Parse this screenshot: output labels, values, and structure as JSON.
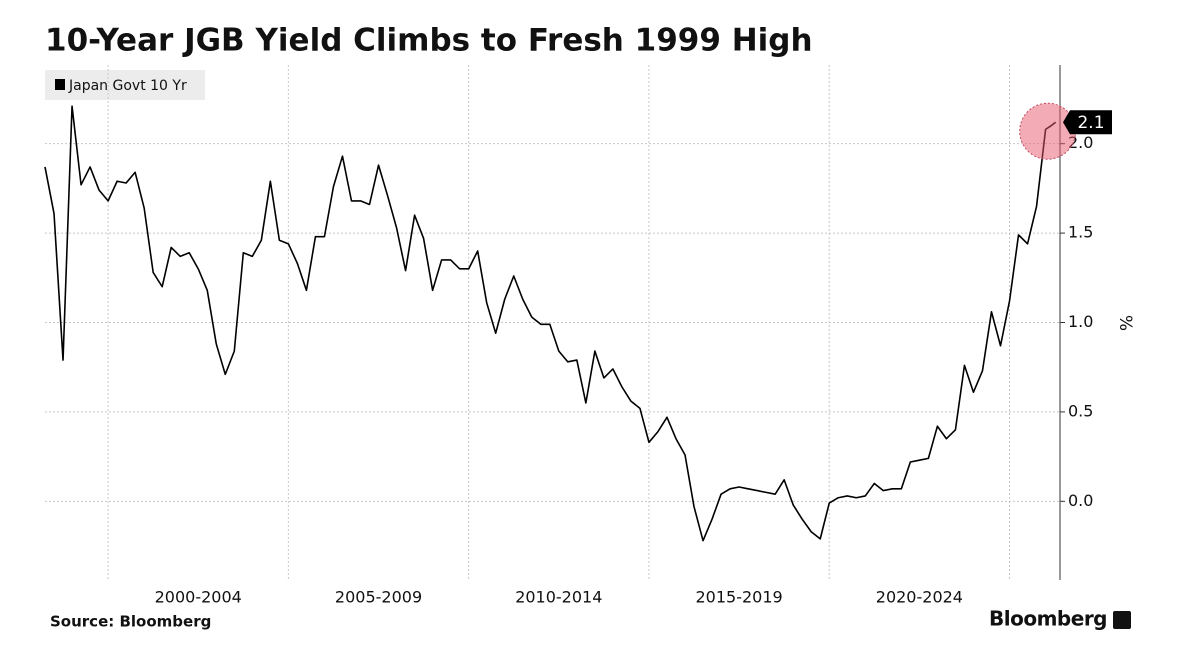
{
  "chart_data": {
    "type": "line",
    "title": "10-Year JGB Yield Climbs to Fresh 1999 High",
    "source": "Source: Bloomberg",
    "brand": "Bloomberg",
    "y_label": "%",
    "x": [
      1998.25,
      1998.5,
      1998.75,
      1999,
      1999.25,
      1999.5,
      1999.75,
      2000,
      2000.25,
      2000.5,
      2000.75,
      2001,
      2001.25,
      2001.5,
      2001.75,
      2002,
      2002.25,
      2002.5,
      2002.75,
      2003,
      2003.25,
      2003.5,
      2003.75,
      2004,
      2004.25,
      2004.5,
      2004.75,
      2005,
      2005.25,
      2005.5,
      2005.75,
      2006,
      2006.25,
      2006.5,
      2006.75,
      2007,
      2007.25,
      2007.5,
      2007.75,
      2008,
      2008.25,
      2008.5,
      2008.75,
      2009,
      2009.25,
      2009.5,
      2009.75,
      2010,
      2010.25,
      2010.5,
      2010.75,
      2011,
      2011.25,
      2011.5,
      2011.75,
      2012,
      2012.25,
      2012.5,
      2012.75,
      2013,
      2013.25,
      2013.5,
      2013.75,
      2014,
      2014.25,
      2014.5,
      2014.75,
      2015,
      2015.25,
      2015.5,
      2015.75,
      2016,
      2016.25,
      2016.5,
      2016.75,
      2017,
      2017.25,
      2017.5,
      2017.75,
      2018,
      2018.25,
      2018.5,
      2018.75,
      2019,
      2019.25,
      2019.5,
      2019.75,
      2020,
      2020.25,
      2020.5,
      2020.75,
      2021,
      2021.25,
      2021.5,
      2021.75,
      2022,
      2022.25,
      2022.5,
      2022.75,
      2023,
      2023.25,
      2023.5,
      2023.75,
      2024,
      2024.25,
      2024.5,
      2024.75,
      2025,
      2025.25,
      2025.5,
      2025.75,
      2026,
      2026.15,
      2026.28
    ],
    "series": [
      {
        "name": "Japan Govt 10 Yr",
        "color": "#000000",
        "values": [
          1.87,
          1.61,
          0.79,
          2.21,
          1.77,
          1.87,
          1.74,
          1.68,
          1.79,
          1.78,
          1.84,
          1.64,
          1.28,
          1.2,
          1.42,
          1.37,
          1.39,
          1.3,
          1.18,
          0.88,
          0.71,
          0.84,
          1.39,
          1.37,
          1.46,
          1.79,
          1.46,
          1.44,
          1.33,
          1.18,
          1.48,
          1.48,
          1.76,
          1.93,
          1.68,
          1.68,
          1.66,
          1.88,
          1.71,
          1.53,
          1.29,
          1.6,
          1.47,
          1.18,
          1.35,
          1.35,
          1.3,
          1.3,
          1.4,
          1.11,
          0.94,
          1.13,
          1.26,
          1.13,
          1.03,
          0.99,
          0.99,
          0.84,
          0.78,
          0.79,
          0.55,
          0.84,
          0.69,
          0.74,
          0.64,
          0.56,
          0.52,
          0.33,
          0.39,
          0.47,
          0.35,
          0.26,
          -0.03,
          -0.22,
          -0.1,
          0.04,
          0.07,
          0.08,
          0.07,
          0.06,
          0.05,
          0.04,
          0.12,
          -0.02,
          -0.1,
          -0.17,
          -0.21,
          -0.01,
          0.02,
          0.03,
          0.02,
          0.03,
          0.1,
          0.06,
          0.07,
          0.07,
          0.22,
          0.23,
          0.24,
          0.42,
          0.35,
          0.4,
          0.76,
          0.61,
          0.73,
          1.06,
          0.87,
          1.12,
          1.49,
          1.44,
          1.65,
          2.08,
          2.1,
          2.12
        ],
        "value_labels": {
          "113": "2.1"
        }
      }
    ],
    "xlim": [
      1998.25,
      2026.4
    ],
    "xticks": [
      2000,
      2005,
      2010,
      2015,
      2020,
      2025
    ],
    "x_period_labels": [
      "2000-2004",
      "2005-2009",
      "2010-2014",
      "2015-2019",
      "2020-2024"
    ],
    "ylim": [
      -0.44,
      2.44
    ],
    "yticks": [
      {
        "value": 0,
        "label": "0.0"
      },
      0.5,
      {
        "value": 1,
        "label": "1.0"
      },
      1.5,
      {
        "value": 2,
        "label": "2.0"
      }
    ],
    "grid": true,
    "y_axis_side": "right",
    "legend": "top-left"
  }
}
